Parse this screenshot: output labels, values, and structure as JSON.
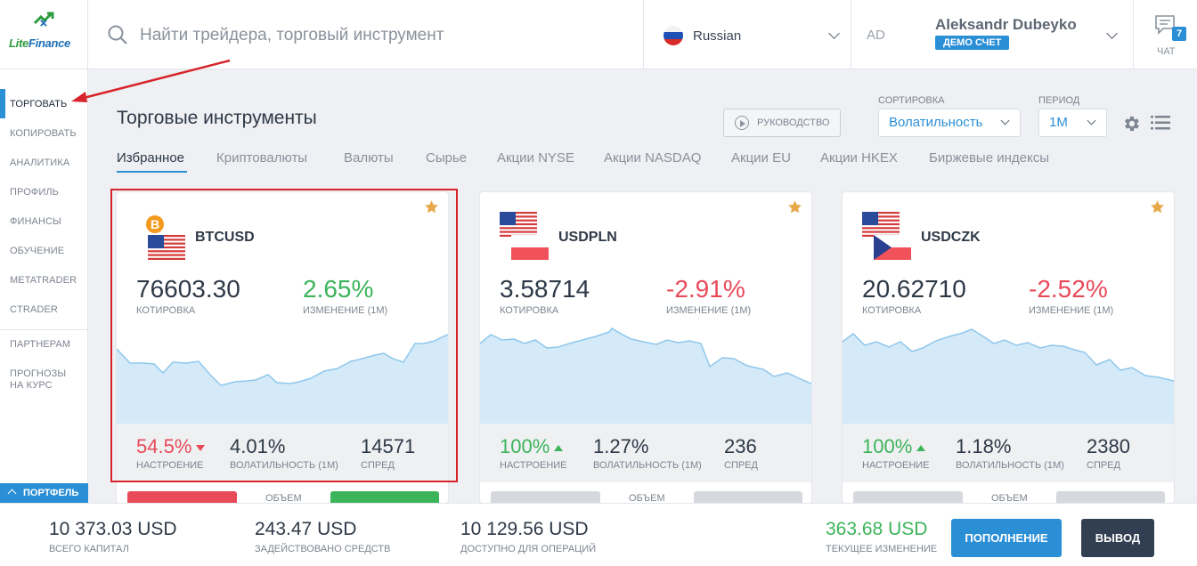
{
  "brand": {
    "name_part1": "Lite",
    "name_part2": "Finance"
  },
  "search": {
    "placeholder": "Найти трейдера, торговый инструмент"
  },
  "language": {
    "label": "Russian"
  },
  "user": {
    "initials": "AD",
    "name": "Aleksandr Dubeyko",
    "account_badge": "ДЕМО СЧЕТ"
  },
  "chat": {
    "label": "ЧАТ",
    "count": "7"
  },
  "sidebar": {
    "items": [
      {
        "label": "ТОРГОВАТЬ",
        "active": true
      },
      {
        "label": "КОПИРОВАТЬ"
      },
      {
        "label": "АНАЛИТИКА"
      },
      {
        "label": "ПРОФИЛЬ"
      },
      {
        "label": "ФИНАНСЫ"
      },
      {
        "label": "ОБУЧЕНИЕ"
      },
      {
        "label": "METATRADER"
      },
      {
        "label": "CTRADER"
      },
      {
        "label": "ПАРТНЕРАМ"
      },
      {
        "label": "ПРОГНОЗЫ"
      },
      {
        "label": "НА КУРС"
      }
    ],
    "portfolio_label": "ПОРТФЕЛЬ"
  },
  "main": {
    "title": "Торговые инструменты",
    "guide_label": "РУКОВОДСТВО",
    "sort_label": "СОРТИРОВКА",
    "sort_value": "Волатильность",
    "period_label": "ПЕРИОД",
    "period_value": "1M",
    "tabs": [
      {
        "label": "Избранное",
        "active": true
      },
      {
        "label": "Криптовалюты"
      },
      {
        "label": "Валюты"
      },
      {
        "label": "Сырье"
      },
      {
        "label": "Акции NYSE"
      },
      {
        "label": "Акции NASDAQ"
      },
      {
        "label": "Акции EU"
      },
      {
        "label": "Акции HKEX"
      },
      {
        "label": "Биржевые индексы"
      }
    ]
  },
  "cards": [
    {
      "symbol": "BTCUSD",
      "price": "76603.30",
      "price_label": "КОТИРОВКА",
      "change": "2.65%",
      "change_label": "ИЗМЕНЕНИЕ (1М)",
      "change_color": "#3cb45a",
      "sentiment": "54.5%",
      "sentiment_label": "НАСТРОЕНИЕ",
      "sentiment_dir": "down",
      "volatility": "4.01%",
      "volatility_label": "ВОЛАТИЛЬНОСТЬ (1М)",
      "spread": "14571",
      "spread_label": "СПРЕД",
      "volume_label": "ОБЪЕМ"
    },
    {
      "symbol": "USDPLN",
      "price": "3.58714",
      "price_label": "КОТИРОВКА",
      "change": "-2.91%",
      "change_label": "ИЗМЕНЕНИЕ (1М)",
      "change_color": "#e84a5a",
      "sentiment": "100%",
      "sentiment_label": "НАСТРОЕНИЕ",
      "sentiment_dir": "up",
      "volatility": "1.27%",
      "volatility_label": "ВОЛАТИЛЬНОСТЬ (1М)",
      "spread": "236",
      "spread_label": "СПРЕД",
      "volume_label": "ОБЪЕМ"
    },
    {
      "symbol": "USDCZK",
      "price": "20.62710",
      "price_label": "КОТИРОВКА",
      "change": "-2.52%",
      "change_label": "ИЗМЕНЕНИЕ (1М)",
      "change_color": "#e84a5a",
      "sentiment": "100%",
      "sentiment_label": "НАСТРОЕНИЕ",
      "sentiment_dir": "up",
      "volatility": "1.18%",
      "volatility_label": "ВОЛАТИЛЬНОСТЬ (1М)",
      "spread": "2380",
      "spread_label": "СПРЕД",
      "volume_label": "ОБЪЕМ"
    }
  ],
  "bottom": {
    "total_capital": "10 373.03 USD",
    "total_capital_label": "ВСЕГО КАПИТАЛ",
    "used_funds": "243.47 USD",
    "used_funds_label": "ЗАДЕЙСТВОВАНО СРЕДСТВ",
    "available": "10 129.56 USD",
    "available_label": "ДОСТУПНО ДЛЯ ОПЕРАЦИЙ",
    "current_change": "363.68 USD",
    "current_change_label": "ТЕКУЩЕЕ ИЗМЕНЕНИЕ",
    "deposit_label": "ПОПОЛНЕНИЕ",
    "withdraw_label": "ВЫВОД"
  },
  "colors": {
    "accent": "#2b8fd6",
    "positive": "#3cb45a",
    "negative": "#e84a5a",
    "annotation": "#d8232a"
  }
}
